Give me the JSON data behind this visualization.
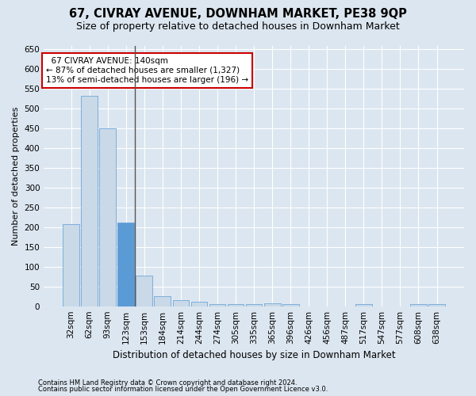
{
  "title1": "67, CIVRAY AVENUE, DOWNHAM MARKET, PE38 9QP",
  "title2": "Size of property relative to detached houses in Downham Market",
  "xlabel": "Distribution of detached houses by size in Downham Market",
  "ylabel": "Number of detached properties",
  "footer1": "Contains HM Land Registry data © Crown copyright and database right 2024.",
  "footer2": "Contains public sector information licensed under the Open Government Licence v3.0.",
  "annotation_line1": "  67 CIVRAY AVENUE: 140sqm",
  "annotation_line2": "← 87% of detached houses are smaller (1,327)",
  "annotation_line3": "13% of semi-detached houses are larger (196) →",
  "bar_color": "#c9d9e8",
  "bar_edge_color": "#5b9bd5",
  "highlight_bar_color": "#5b9bd5",
  "annotation_box_color": "#ffffff",
  "annotation_box_edge": "#cc0000",
  "background_color": "#dce6f0",
  "plot_bg_color": "#dce6f0",
  "gridcolor": "#ffffff",
  "categories": [
    "32sqm",
    "62sqm",
    "93sqm",
    "123sqm",
    "153sqm",
    "184sqm",
    "214sqm",
    "244sqm",
    "274sqm",
    "305sqm",
    "335sqm",
    "365sqm",
    "396sqm",
    "426sqm",
    "456sqm",
    "487sqm",
    "517sqm",
    "547sqm",
    "577sqm",
    "608sqm",
    "638sqm"
  ],
  "values": [
    208,
    533,
    450,
    212,
    78,
    26,
    15,
    12,
    5,
    5,
    5,
    8,
    6,
    0,
    0,
    0,
    5,
    0,
    0,
    5,
    5
  ],
  "highlight_index": 3,
  "vline_index": 4,
  "ylim": [
    0,
    660
  ],
  "yticks": [
    0,
    50,
    100,
    150,
    200,
    250,
    300,
    350,
    400,
    450,
    500,
    550,
    600,
    650
  ],
  "title1_fontsize": 10.5,
  "title2_fontsize": 9,
  "ylabel_fontsize": 8,
  "xlabel_fontsize": 8.5,
  "tick_fontsize": 7.5,
  "annotation_fontsize": 7.5,
  "footer_fontsize": 6
}
